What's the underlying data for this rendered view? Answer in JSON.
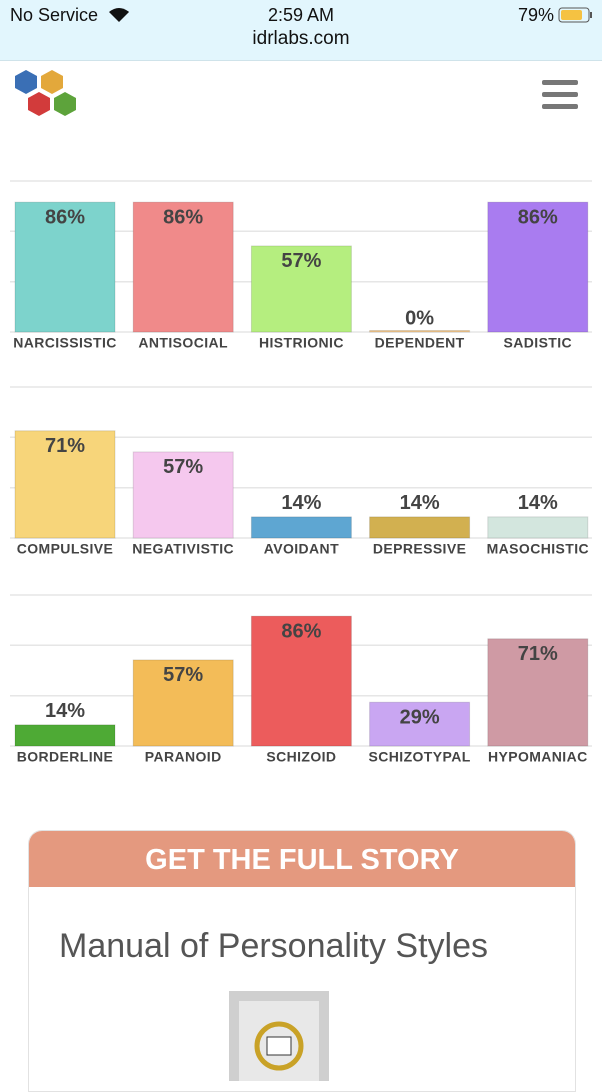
{
  "status_bar": {
    "carrier": "No Service",
    "time": "2:59 AM",
    "url": "idrlabs.com",
    "battery": "79%"
  },
  "chart_data": [
    {
      "type": "bar",
      "categories": [
        "NARCISSISTIC",
        "ANTISOCIAL",
        "HISTRIONIC",
        "DEPENDENT",
        "SADISTIC"
      ],
      "values": [
        86,
        86,
        57,
        0,
        86
      ],
      "value_labels": [
        "86%",
        "86%",
        "57%",
        "0%",
        "86%"
      ],
      "colors": [
        "#7dd3cc",
        "#f08a8a",
        "#b5ee7f",
        "#f2c78a",
        "#a97cf0"
      ],
      "ylim": [
        0,
        100
      ],
      "yticks": [
        0,
        33.3,
        66.7,
        100
      ],
      "grid": true
    },
    {
      "type": "bar",
      "categories": [
        "COMPULSIVE",
        "NEGATIVISTIC",
        "AVOIDANT",
        "DEPRESSIVE",
        "MASOCHISTIC"
      ],
      "values": [
        71,
        57,
        14,
        14,
        14
      ],
      "value_labels": [
        "71%",
        "57%",
        "14%",
        "14%",
        "14%"
      ],
      "colors": [
        "#f7d57a",
        "#f5c8ee",
        "#5ea6d2",
        "#d2b050",
        "#d3e6de"
      ],
      "ylim": [
        0,
        100
      ],
      "yticks": [
        0,
        33.3,
        66.7,
        100
      ],
      "grid": true
    },
    {
      "type": "bar",
      "categories": [
        "BORDERLINE",
        "PARANOID",
        "SCHIZOID",
        "SCHIZOTYPAL",
        "HYPOMANIAC"
      ],
      "values": [
        14,
        57,
        86,
        29,
        71
      ],
      "value_labels": [
        "14%",
        "57%",
        "86%",
        "29%",
        "71%"
      ],
      "colors": [
        "#4eaa35",
        "#f3bc58",
        "#ec5c5c",
        "#c9a6f2",
        "#cf9aa4"
      ],
      "ylim": [
        0,
        100
      ],
      "yticks": [
        0,
        33.3,
        66.7,
        100
      ],
      "grid": true
    }
  ],
  "promo": {
    "header": "GET THE FULL STORY",
    "title": "Manual of Personality Styles"
  }
}
